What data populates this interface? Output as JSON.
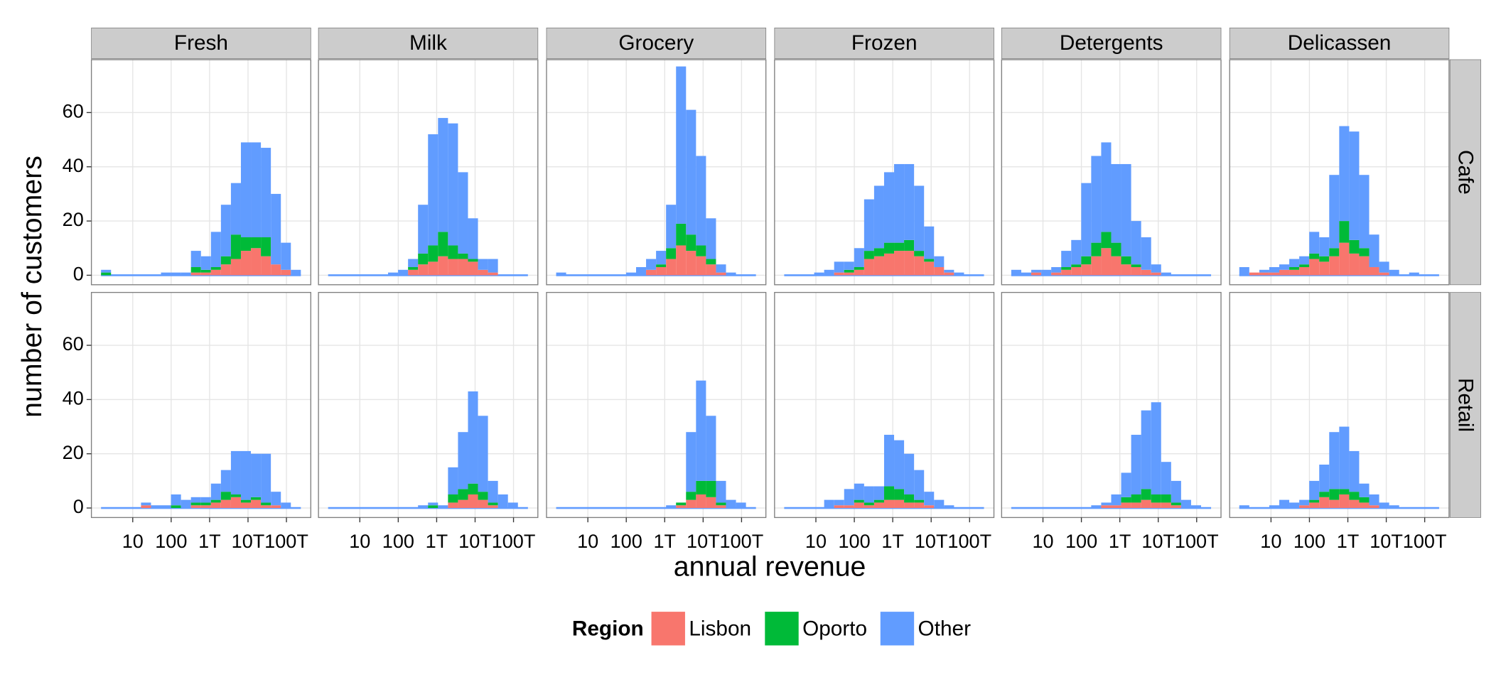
{
  "chart_data": {
    "type": "histogram",
    "columns": [
      "Fresh",
      "Milk",
      "Grocery",
      "Frozen",
      "Detergents",
      "Delicassen"
    ],
    "rows": [
      "Cafe",
      "Retail"
    ],
    "xlabel": "annual revenue",
    "ylabel": "number of customers",
    "legend_title": "Region",
    "legend_position": "bottom",
    "series": [
      {
        "name": "Lisbon",
        "color": "#F8766D"
      },
      {
        "name": "Oporto",
        "color": "#00BA38"
      },
      {
        "name": "Other",
        "color": "#619CFF"
      }
    ],
    "xscale": "log",
    "xlim": [
      0.84,
      430000
    ],
    "xticks": [
      10,
      100,
      {
        "value": 1000,
        "label": "1T"
      },
      {
        "value": 10000,
        "label": "10T"
      },
      {
        "value": 100000,
        "label": "100T"
      }
    ],
    "ylim": [
      -3.5,
      79.5
    ],
    "yticks": [
      0,
      20,
      40,
      60
    ],
    "grid": true,
    "bins": [
      1.496,
      2.723,
      4.955,
      9.016,
      16.41,
      29.85,
      54.33,
      98.86,
      179.9,
      327.3,
      595.7,
      1084,
      1972,
      3589,
      6531,
      11885,
      21627,
      39355,
      71614,
      130317,
      237137
    ],
    "counts": [
      [
        [
          [
            0,
            0,
            0,
            0,
            0,
            0,
            0,
            0,
            0,
            1,
            1,
            2,
            4,
            6,
            9,
            10,
            7,
            4,
            2,
            0
          ],
          [
            1,
            0,
            0,
            0,
            0,
            0,
            0,
            0,
            0,
            2,
            1,
            1,
            3,
            9,
            5,
            4,
            7,
            0,
            0,
            0
          ],
          [
            1,
            0,
            0,
            0,
            0,
            0,
            1,
            1,
            1,
            6,
            5,
            13,
            19,
            19,
            35,
            35,
            33,
            26,
            10,
            2
          ]
        ],
        [
          [
            0,
            0,
            0,
            0,
            0,
            0,
            0,
            0,
            2,
            4,
            5,
            7,
            6,
            6,
            5,
            2,
            1,
            0,
            0,
            0
          ],
          [
            0,
            0,
            0,
            0,
            0,
            0,
            0,
            0,
            1,
            4,
            6,
            9,
            5,
            2,
            1,
            0,
            0,
            0,
            0,
            0
          ],
          [
            0,
            0,
            0,
            0,
            0,
            0,
            1,
            2,
            3,
            18,
            41,
            42,
            45,
            30,
            15,
            4,
            5,
            0,
            0,
            0
          ]
        ],
        [
          [
            0,
            0,
            0,
            0,
            0,
            0,
            0,
            0,
            0,
            2,
            3,
            6,
            11,
            9,
            7,
            4,
            1,
            0,
            0,
            0
          ],
          [
            0,
            0,
            0,
            0,
            0,
            0,
            0,
            0,
            0,
            0,
            1,
            4,
            8,
            6,
            4,
            2,
            0,
            0,
            0,
            0
          ],
          [
            1,
            0,
            0,
            0,
            0,
            0,
            0,
            1,
            3,
            4,
            5,
            16,
            58,
            46,
            33,
            15,
            3,
            1,
            0,
            0
          ]
        ],
        [
          [
            0,
            0,
            0,
            0,
            0,
            1,
            1,
            2,
            6,
            7,
            8,
            9,
            9,
            7,
            5,
            3,
            1,
            0,
            0,
            0
          ],
          [
            0,
            0,
            0,
            0,
            0,
            0,
            1,
            1,
            3,
            3,
            4,
            3,
            4,
            2,
            1,
            0,
            0,
            0,
            0,
            0
          ],
          [
            0,
            0,
            0,
            1,
            2,
            4,
            3,
            7,
            19,
            23,
            26,
            29,
            28,
            24,
            12,
            4,
            1,
            1,
            0,
            0
          ]
        ],
        [
          [
            0,
            0,
            1,
            0,
            1,
            2,
            3,
            4,
            7,
            10,
            7,
            4,
            3,
            2,
            1,
            0,
            0,
            0,
            0,
            0
          ],
          [
            0,
            0,
            0,
            0,
            0,
            1,
            1,
            3,
            5,
            6,
            5,
            3,
            1,
            0,
            0,
            0,
            0,
            0,
            0,
            0
          ],
          [
            2,
            1,
            1,
            2,
            2,
            6,
            9,
            27,
            32,
            33,
            29,
            34,
            16,
            12,
            3,
            1,
            0,
            0,
            0,
            0
          ]
        ],
        [
          [
            0,
            1,
            1,
            1,
            2,
            2,
            3,
            6,
            5,
            7,
            12,
            8,
            7,
            3,
            1,
            0,
            0,
            0,
            0,
            0
          ],
          [
            0,
            0,
            0,
            0,
            0,
            1,
            1,
            2,
            2,
            3,
            8,
            5,
            3,
            0,
            0,
            0,
            0,
            0,
            0,
            0
          ],
          [
            3,
            0,
            1,
            2,
            2,
            3,
            3,
            8,
            7,
            27,
            35,
            40,
            27,
            12,
            4,
            2,
            0,
            1,
            0,
            0
          ]
        ]
      ],
      [
        [
          [
            0,
            0,
            0,
            0,
            1,
            0,
            0,
            0,
            0,
            1,
            1,
            2,
            3,
            4,
            2,
            3,
            1,
            1,
            0,
            0
          ],
          [
            0,
            0,
            0,
            0,
            0,
            0,
            0,
            1,
            0,
            1,
            1,
            1,
            3,
            1,
            1,
            1,
            1,
            0,
            0,
            0
          ],
          [
            0,
            0,
            0,
            0,
            1,
            1,
            1,
            4,
            3,
            2,
            2,
            6,
            8,
            16,
            18,
            16,
            18,
            5,
            2,
            0
          ]
        ],
        [
          [
            0,
            0,
            0,
            0,
            0,
            0,
            0,
            0,
            0,
            0,
            0,
            0,
            2,
            3,
            5,
            3,
            1,
            0,
            0,
            0
          ],
          [
            0,
            0,
            0,
            0,
            0,
            0,
            0,
            0,
            0,
            0,
            1,
            0,
            3,
            4,
            4,
            3,
            1,
            0,
            0,
            0
          ],
          [
            0,
            0,
            0,
            0,
            0,
            0,
            0,
            0,
            0,
            1,
            1,
            1,
            10,
            21,
            34,
            28,
            8,
            5,
            2,
            0
          ]
        ],
        [
          [
            0,
            0,
            0,
            0,
            0,
            0,
            0,
            0,
            0,
            0,
            0,
            0,
            1,
            3,
            5,
            4,
            1,
            0,
            0,
            0
          ],
          [
            0,
            0,
            0,
            0,
            0,
            0,
            0,
            0,
            0,
            0,
            0,
            0,
            1,
            3,
            5,
            6,
            1,
            0,
            0,
            0
          ],
          [
            0,
            0,
            0,
            0,
            0,
            0,
            0,
            0,
            0,
            0,
            0,
            1,
            0,
            22,
            37,
            24,
            8,
            3,
            2,
            0
          ]
        ],
        [
          [
            0,
            0,
            0,
            0,
            0,
            1,
            1,
            2,
            1,
            2,
            3,
            3,
            2,
            2,
            1,
            0,
            0,
            0,
            0,
            0
          ],
          [
            0,
            0,
            0,
            0,
            0,
            0,
            0,
            1,
            1,
            1,
            5,
            4,
            3,
            1,
            0,
            0,
            0,
            0,
            0,
            0
          ],
          [
            0,
            0,
            0,
            0,
            3,
            2,
            6,
            6,
            6,
            5,
            19,
            18,
            15,
            11,
            5,
            3,
            1,
            0,
            0,
            0
          ]
        ],
        [
          [
            0,
            0,
            0,
            0,
            0,
            0,
            0,
            0,
            0,
            1,
            1,
            2,
            2,
            3,
            2,
            2,
            1,
            0,
            0,
            0
          ],
          [
            0,
            0,
            0,
            0,
            0,
            0,
            0,
            0,
            0,
            0,
            0,
            2,
            3,
            4,
            3,
            3,
            1,
            0,
            0,
            0
          ],
          [
            0,
            0,
            0,
            0,
            0,
            0,
            0,
            0,
            1,
            1,
            4,
            9,
            22,
            29,
            34,
            12,
            8,
            3,
            1,
            0
          ]
        ],
        [
          [
            0,
            0,
            0,
            0,
            0,
            0,
            1,
            2,
            4,
            3,
            5,
            3,
            2,
            1,
            0,
            0,
            0,
            0,
            0,
            0
          ],
          [
            0,
            0,
            0,
            0,
            0,
            0,
            0,
            1,
            2,
            4,
            2,
            3,
            2,
            0,
            0,
            0,
            0,
            0,
            0,
            0
          ],
          [
            1,
            0,
            0,
            1,
            3,
            2,
            2,
            7,
            10,
            21,
            23,
            15,
            5,
            4,
            2,
            1,
            0,
            0,
            0,
            0
          ]
        ]
      ]
    ]
  }
}
